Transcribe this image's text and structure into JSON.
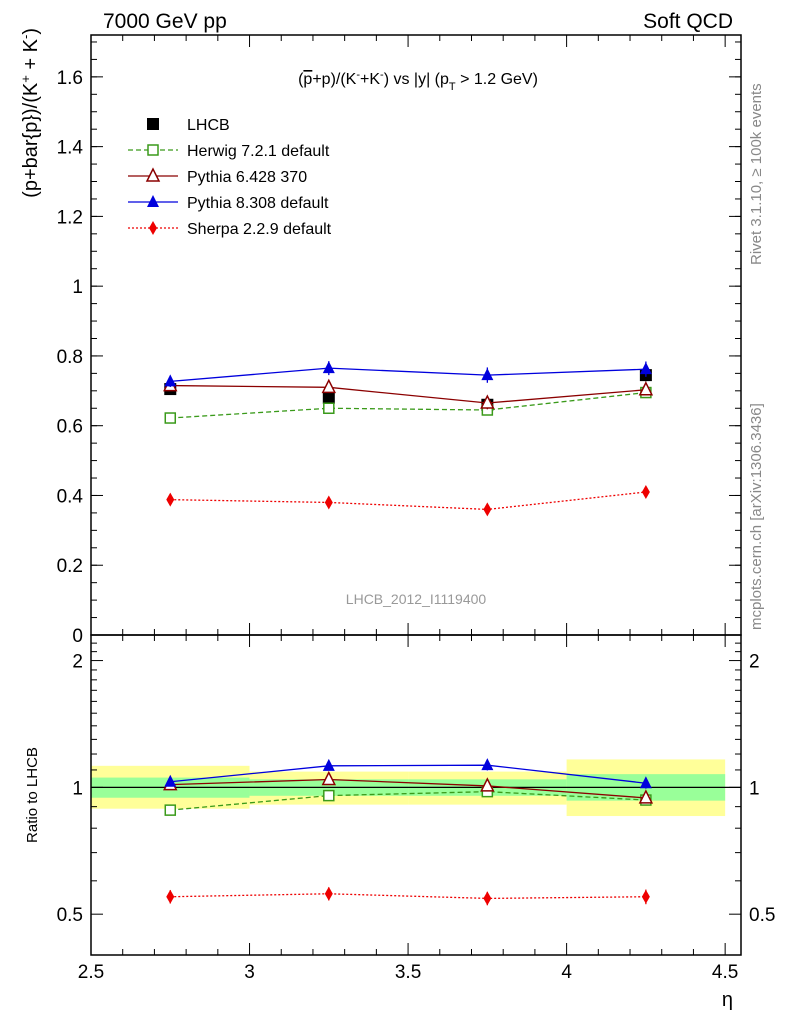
{
  "header": {
    "left_title": "7000 GeV pp",
    "right_title": "Soft QCD"
  },
  "side_labels": {
    "rivet": "Rivet 3.1.10, ≥ 100k events",
    "mcplots": "mcplots.cern.ch [arXiv:1306.3436]"
  },
  "chart_data": [
    {
      "type": "line",
      "title_parts": {
        "pbar": "p",
        "rest1": "+p)/(K",
        "rest2": "+K",
        "rest3": ") vs |y| (p",
        "sub": "T",
        "rest4": " > 1.2 GeV)",
        "minus": "-",
        "open": "("
      },
      "ylabel_parts": {
        "main": "(p+bar{p})/(K",
        "plus_sup": "+",
        "mid": " + K",
        "minus_sup": "-",
        "close": ")"
      },
      "watermark": "LHCB_2012_I1119400",
      "xlim": [
        2.5,
        4.55
      ],
      "ylim": [
        0,
        1.72
      ],
      "yticks": [
        0,
        0.2,
        0.4,
        0.6,
        0.8,
        1,
        1.2,
        1.4,
        1.6
      ],
      "ytick_labels": [
        "0",
        "0.2",
        "0.4",
        "0.6",
        "0.8",
        "1",
        "1.2",
        "1.4",
        "1.6"
      ],
      "x": [
        2.75,
        3.25,
        3.75,
        4.25
      ],
      "legend_position": "top-left",
      "series": [
        {
          "name": "LHCB",
          "color": "#000000",
          "marker": "square-filled",
          "line": "none",
          "values": [
            0.705,
            0.68,
            0.66,
            0.745
          ],
          "errors": [
            0.012,
            0.012,
            0.012,
            0.018
          ]
        },
        {
          "name": "Herwig 7.2.1 default",
          "color": "#3a9a1a",
          "marker": "square-open",
          "line": "dashed",
          "values": [
            0.622,
            0.65,
            0.645,
            0.695
          ],
          "errors": [
            0.012,
            0.014,
            0.014,
            0.014
          ]
        },
        {
          "name": "Pythia 6.428 370",
          "color": "#8b0000",
          "marker": "triangle-open",
          "line": "solid",
          "values": [
            0.715,
            0.71,
            0.665,
            0.703
          ],
          "errors": [
            0.014,
            0.016,
            0.018,
            0.016
          ]
        },
        {
          "name": "Pythia 8.308 default",
          "color": "#0000dd",
          "marker": "triangle-filled",
          "line": "solid",
          "values": [
            0.727,
            0.765,
            0.745,
            0.762
          ],
          "errors": [
            0.016,
            0.02,
            0.022,
            0.022
          ]
        },
        {
          "name": "Sherpa 2.2.9 default",
          "color": "#ee0000",
          "marker": "diamond-filled",
          "line": "dotted",
          "values": [
            0.388,
            0.38,
            0.36,
            0.41
          ],
          "errors": [
            0.014,
            0.014,
            0.014,
            0.016
          ]
        }
      ]
    },
    {
      "type": "line",
      "ylabel": "Ratio to LHCB",
      "xlabel": "η",
      "xlim": [
        2.5,
        4.55
      ],
      "ylim": [
        0.4,
        2.3
      ],
      "ylog": true,
      "yticks": [
        0.5,
        1,
        2
      ],
      "ytick_labels": [
        "0.5",
        "1",
        "2"
      ],
      "xticks": [
        2.5,
        3,
        3.5,
        4,
        4.5
      ],
      "xtick_labels": [
        "2.5",
        "3",
        "3.5",
        "4",
        "4.5"
      ],
      "x": [
        2.75,
        3.25,
        3.75,
        4.25
      ],
      "bands": [
        {
          "x_range": [
            2.5,
            3.0
          ],
          "inner": [
            0.945,
            1.055
          ],
          "outer": [
            0.89,
            1.125
          ]
        },
        {
          "x_range": [
            3.0,
            3.5
          ],
          "inner": [
            0.955,
            1.045
          ],
          "outer": [
            0.91,
            1.09
          ]
        },
        {
          "x_range": [
            3.5,
            4.0
          ],
          "inner": [
            0.955,
            1.045
          ],
          "outer": [
            0.91,
            1.09
          ]
        },
        {
          "x_range": [
            4.0,
            4.5
          ],
          "inner": [
            0.93,
            1.075
          ],
          "outer": [
            0.855,
            1.165
          ]
        }
      ],
      "series": [
        {
          "name": "Herwig 7.2.1 default",
          "color": "#3a9a1a",
          "marker": "square-open",
          "line": "dashed",
          "values": [
            0.883,
            0.956,
            0.977,
            0.933
          ],
          "errors": [
            0.015,
            0.02,
            0.02,
            0.02
          ]
        },
        {
          "name": "Pythia 6.428 370",
          "color": "#8b0000",
          "marker": "triangle-open",
          "line": "solid",
          "values": [
            1.015,
            1.044,
            1.008,
            0.944
          ],
          "errors": [
            0.02,
            0.024,
            0.026,
            0.022
          ]
        },
        {
          "name": "Pythia 8.308 default",
          "color": "#0000dd",
          "marker": "triangle-filled",
          "line": "solid",
          "values": [
            1.031,
            1.125,
            1.129,
            1.023
          ],
          "errors": [
            0.022,
            0.028,
            0.032,
            0.03
          ]
        },
        {
          "name": "Sherpa 2.2.9 default",
          "color": "#ee0000",
          "marker": "diamond-filled",
          "line": "dotted",
          "values": [
            0.55,
            0.559,
            0.545,
            0.55
          ],
          "errors": [
            0.02,
            0.02,
            0.02,
            0.022
          ]
        }
      ]
    }
  ]
}
